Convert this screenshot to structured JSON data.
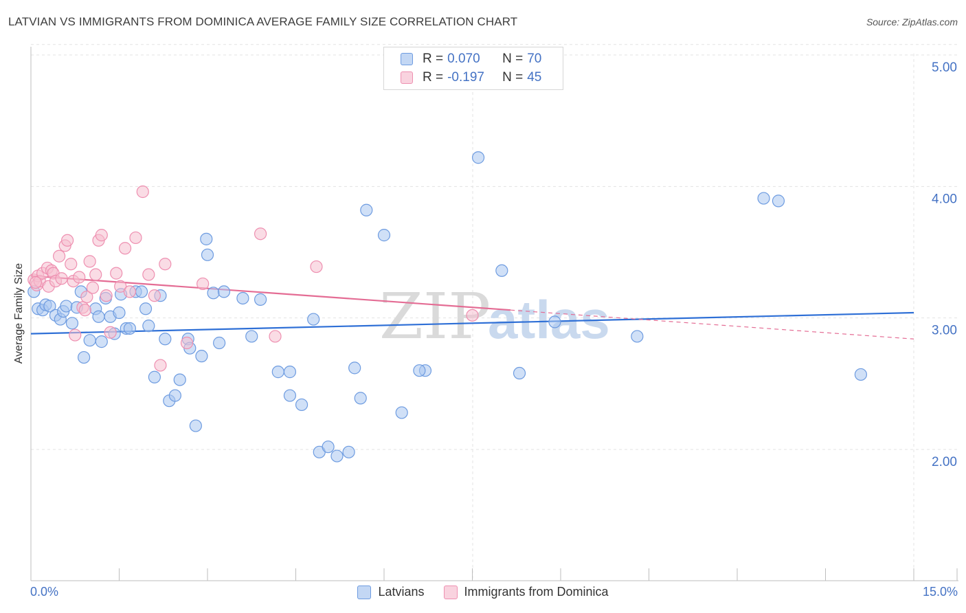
{
  "header": {
    "title": "LATVIAN VS IMMIGRANTS FROM DOMINICA AVERAGE FAMILY SIZE CORRELATION CHART",
    "source": "Source: ZipAtlas.com"
  },
  "colors": {
    "latvians_fill": "#a9c6f0",
    "latvians_stroke": "#6d9be0",
    "latvians_line": "#2e6fd6",
    "dominica_fill": "#f6bfd0",
    "dominica_stroke": "#ee8fb0",
    "dominica_line": "#e46c94",
    "axis_text": "#4472c4",
    "grid": "#e3e3e3"
  },
  "legend": {
    "rows": [
      {
        "r_label": "R =",
        "r_value": "0.070",
        "n_label": "N =",
        "n_value": "70"
      },
      {
        "r_label": "R =",
        "r_value": "-0.197",
        "n_label": "N =",
        "n_value": "45"
      }
    ]
  },
  "watermark": {
    "part1": "ZIP",
    "part2": "atlas"
  },
  "chart_data": {
    "type": "scatter",
    "title": "LATVIAN VS IMMIGRANTS FROM DOMINICA AVERAGE FAMILY SIZE CORRELATION CHART",
    "xlabel": "",
    "ylabel": "Average Family Size",
    "xlim": [
      0,
      15
    ],
    "ylim": [
      1.0,
      5.1
    ],
    "x_tick_labels": [
      "0.0%",
      "15.0%"
    ],
    "y_ticks": [
      2.0,
      3.0,
      4.0,
      5.0
    ],
    "y_tick_labels": [
      "2.00",
      "3.00",
      "4.00",
      "5.00"
    ],
    "grid": true,
    "legend_position": "top-center",
    "series": [
      {
        "name": "Latvians",
        "r": 0.07,
        "n": 70,
        "trend": {
          "x": [
            0,
            15
          ],
          "y": [
            2.88,
            3.04
          ]
        },
        "points": [
          [
            0.05,
            3.2
          ],
          [
            0.12,
            3.07
          ],
          [
            0.2,
            3.06
          ],
          [
            0.25,
            3.1
          ],
          [
            0.32,
            3.09
          ],
          [
            0.42,
            3.02
          ],
          [
            0.5,
            2.99
          ],
          [
            0.55,
            3.05
          ],
          [
            0.6,
            3.09
          ],
          [
            0.7,
            2.96
          ],
          [
            0.78,
            3.08
          ],
          [
            0.85,
            3.2
          ],
          [
            0.9,
            2.7
          ],
          [
            1.0,
            2.83
          ],
          [
            1.1,
            3.07
          ],
          [
            1.15,
            3.01
          ],
          [
            1.2,
            2.82
          ],
          [
            1.27,
            3.15
          ],
          [
            1.35,
            3.01
          ],
          [
            1.42,
            2.88
          ],
          [
            1.5,
            3.04
          ],
          [
            1.53,
            3.18
          ],
          [
            1.62,
            2.92
          ],
          [
            1.68,
            2.92
          ],
          [
            1.78,
            3.2
          ],
          [
            1.88,
            3.2
          ],
          [
            1.95,
            3.07
          ],
          [
            2.0,
            2.94
          ],
          [
            2.1,
            2.55
          ],
          [
            2.2,
            3.17
          ],
          [
            2.28,
            2.84
          ],
          [
            2.35,
            2.37
          ],
          [
            2.45,
            2.41
          ],
          [
            2.53,
            2.53
          ],
          [
            2.67,
            2.84
          ],
          [
            2.7,
            2.77
          ],
          [
            2.8,
            2.18
          ],
          [
            2.9,
            2.71
          ],
          [
            2.98,
            3.6
          ],
          [
            3.1,
            3.19
          ],
          [
            3.2,
            2.81
          ],
          [
            3.28,
            3.2
          ],
          [
            3.6,
            3.15
          ],
          [
            3.75,
            2.86
          ],
          [
            3.9,
            3.14
          ],
          [
            4.2,
            2.59
          ],
          [
            4.4,
            2.41
          ],
          [
            4.6,
            2.34
          ],
          [
            4.8,
            2.99
          ],
          [
            4.9,
            1.98
          ],
          [
            5.05,
            2.02
          ],
          [
            5.2,
            1.95
          ],
          [
            5.4,
            1.98
          ],
          [
            5.6,
            2.39
          ],
          [
            5.7,
            3.82
          ],
          [
            6.0,
            3.63
          ],
          [
            6.3,
            2.28
          ],
          [
            6.7,
            2.6
          ],
          [
            7.6,
            4.22
          ],
          [
            8.0,
            3.36
          ],
          [
            8.3,
            2.58
          ],
          [
            8.9,
            2.97
          ],
          [
            10.3,
            2.86
          ],
          [
            12.45,
            3.91
          ],
          [
            12.7,
            3.89
          ],
          [
            14.1,
            2.57
          ],
          [
            4.4,
            2.59
          ],
          [
            3.0,
            3.48
          ],
          [
            5.5,
            2.62
          ],
          [
            6.6,
            2.6
          ]
        ]
      },
      {
        "name": "Immigrants from Dominica",
        "r": -0.197,
        "n": 45,
        "trend": {
          "x": [
            0,
            8.15
          ],
          "y": [
            3.32,
            3.06
          ]
        },
        "trend_dashed": {
          "x": [
            8.15,
            15
          ],
          "y": [
            3.06,
            2.84
          ]
        },
        "points": [
          [
            0.05,
            3.29
          ],
          [
            0.1,
            3.25
          ],
          [
            0.12,
            3.32
          ],
          [
            0.15,
            3.28
          ],
          [
            0.2,
            3.34
          ],
          [
            0.28,
            3.38
          ],
          [
            0.3,
            3.24
          ],
          [
            0.35,
            3.36
          ],
          [
            0.38,
            3.34
          ],
          [
            0.42,
            3.28
          ],
          [
            0.48,
            3.47
          ],
          [
            0.52,
            3.3
          ],
          [
            0.58,
            3.55
          ],
          [
            0.62,
            3.59
          ],
          [
            0.68,
            3.41
          ],
          [
            0.72,
            3.28
          ],
          [
            0.75,
            2.87
          ],
          [
            0.82,
            3.31
          ],
          [
            0.88,
            3.08
          ],
          [
            0.92,
            3.06
          ],
          [
            0.95,
            3.16
          ],
          [
            1.0,
            3.43
          ],
          [
            1.05,
            3.23
          ],
          [
            1.1,
            3.33
          ],
          [
            1.15,
            3.59
          ],
          [
            1.2,
            3.63
          ],
          [
            1.28,
            3.17
          ],
          [
            1.35,
            2.89
          ],
          [
            1.45,
            3.34
          ],
          [
            1.52,
            3.24
          ],
          [
            1.6,
            3.53
          ],
          [
            1.68,
            3.2
          ],
          [
            1.78,
            3.61
          ],
          [
            1.9,
            3.96
          ],
          [
            2.0,
            3.33
          ],
          [
            2.1,
            3.17
          ],
          [
            2.2,
            2.64
          ],
          [
            2.28,
            3.41
          ],
          [
            2.65,
            2.81
          ],
          [
            2.92,
            3.26
          ],
          [
            3.9,
            3.64
          ],
          [
            4.15,
            2.86
          ],
          [
            4.85,
            3.39
          ],
          [
            7.5,
            3.02
          ],
          [
            0.08,
            3.27
          ]
        ]
      }
    ]
  },
  "bottom_legend": [
    {
      "label": "Latvians"
    },
    {
      "label": "Immigrants from Dominica"
    }
  ]
}
